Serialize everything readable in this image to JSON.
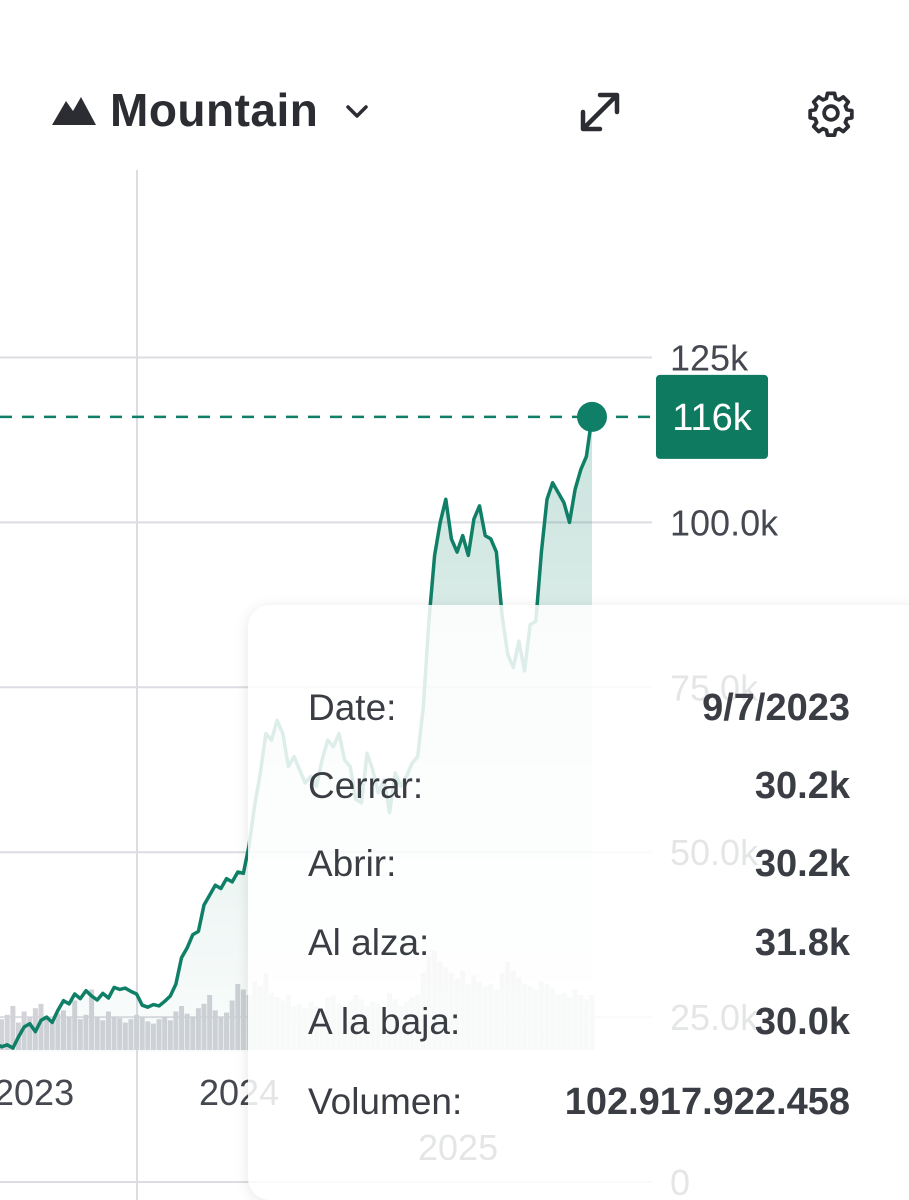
{
  "toolbar": {
    "chart_type_label": "Mountain",
    "icons": [
      "mountain-icon",
      "chevron-down-icon",
      "expand-icon",
      "gear-icon"
    ]
  },
  "chart_data": {
    "type": "area",
    "y_ticks": [
      "125k",
      "100.0k",
      "75.0k",
      "50.0k",
      "25.0k",
      "0"
    ],
    "y_tick_values": [
      125000,
      100000,
      75000,
      50000,
      25000,
      0
    ],
    "ylim": [
      0,
      125000
    ],
    "x_ticks": [
      "2023",
      "2024",
      "2025"
    ],
    "current_value_label": "116k",
    "current_value": 116000,
    "grid": true,
    "series": [
      {
        "values": [
          21000,
          20500,
          20800,
          20300,
          22000,
          23500,
          24000,
          22800,
          24500,
          25000,
          24200,
          26000,
          27500,
          27000,
          28500,
          27800,
          29000,
          28200,
          27600,
          28600,
          27900,
          29500,
          29200,
          29400,
          28900,
          28500,
          26800,
          26500,
          26900,
          26700,
          27400,
          28200,
          30000,
          34000,
          35500,
          37500,
          38000,
          42000,
          43500,
          45000,
          44500,
          46000,
          45500,
          47000,
          46800,
          51000,
          57000,
          62000,
          68000,
          67000,
          70000,
          68000,
          63000,
          64500,
          62500,
          60500,
          61500,
          60000,
          64000,
          67000,
          66000,
          68000,
          64000,
          63000,
          58000,
          57500,
          65000,
          62500,
          59000,
          61000,
          56000,
          62000,
          60000,
          61500,
          63500,
          64500,
          72000,
          85000,
          95000,
          100000,
          103500,
          97500,
          95500,
          98000,
          95000,
          100500,
          102500,
          98000,
          97500,
          95500,
          86000,
          80000,
          78000,
          82000,
          77500,
          84500,
          85000,
          95500,
          103500,
          106000,
          104500,
          103000,
          100000,
          105000,
          108000,
          110000,
          116000
        ],
        "color": "#0f8067"
      }
    ],
    "volume": [
      0.3,
      0.28,
      0.32,
      0.4,
      0.25,
      0.35,
      0.3,
      0.38,
      0.42,
      0.3,
      0.26,
      0.33,
      0.36,
      0.3,
      0.45,
      0.28,
      0.32,
      0.55,
      0.3,
      0.27,
      0.35,
      0.3,
      0.29,
      0.25,
      0.28,
      0.32,
      0.3,
      0.26,
      0.24,
      0.28,
      0.3,
      0.27,
      0.35,
      0.4,
      0.33,
      0.3,
      0.38,
      0.42,
      0.5,
      0.36,
      0.3,
      0.34,
      0.45,
      0.6,
      0.55,
      0.5,
      0.62,
      0.58,
      0.7,
      0.52,
      0.48,
      0.45,
      0.5,
      0.4,
      0.42,
      0.38,
      0.44,
      0.4,
      0.35,
      0.48,
      0.5,
      0.42,
      0.38,
      0.45,
      0.5,
      0.46,
      0.4,
      0.44,
      0.42,
      0.38,
      0.52,
      0.46,
      0.4,
      0.44,
      0.48,
      0.5,
      0.7,
      0.85,
      0.9,
      0.8,
      0.75,
      0.7,
      0.65,
      0.72,
      0.6,
      0.68,
      0.62,
      0.58,
      0.6,
      0.55,
      0.7,
      0.8,
      0.72,
      0.66,
      0.6,
      0.58,
      0.55,
      0.62,
      0.6,
      0.56,
      0.5,
      0.52,
      0.48,
      0.55,
      0.5,
      0.46,
      0.5
    ],
    "colors": {
      "line": "#0f8067",
      "area": "#0f8067",
      "badge": "#0e7a60",
      "grid": "#dcdde3",
      "volume": "#d2d3d8"
    }
  },
  "tooltip": {
    "rows": [
      {
        "key": "Date:",
        "value": "9/7/2023"
      },
      {
        "key": "Cerrar:",
        "value": "30.2k"
      },
      {
        "key": "Abrir:",
        "value": "30.2k"
      },
      {
        "key": "Al alza:",
        "value": "31.8k"
      },
      {
        "key": "A la baja:",
        "value": "30.0k"
      },
      {
        "key": "Volumen:",
        "value": "102.917.922.458"
      }
    ]
  }
}
